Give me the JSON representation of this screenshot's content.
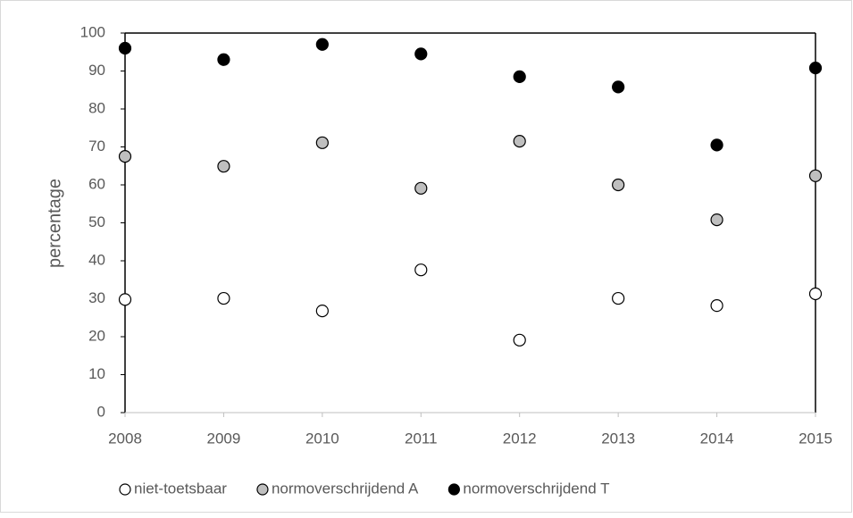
{
  "chart_data": {
    "type": "scatter",
    "y_label": "percentage",
    "x": [
      2008,
      2009,
      2010,
      2011,
      2012,
      2013,
      2014,
      2015
    ],
    "xlim": [
      2008,
      2015
    ],
    "xticks": [
      2008,
      2009,
      2010,
      2011,
      2012,
      2013,
      2014,
      2015
    ],
    "ylim": [
      0,
      100
    ],
    "yticks": [
      0,
      10,
      20,
      30,
      40,
      50,
      60,
      70,
      80,
      90,
      100
    ],
    "grid": false,
    "legend": "bottom",
    "series": [
      {
        "name": "niet-toetsbaar",
        "color": "#ffffff",
        "values": [
          29.8,
          30.1,
          26.8,
          37.6,
          19.1,
          30.1,
          28.2,
          31.3
        ]
      },
      {
        "name": "normoverschrijdend A",
        "color": "#bfbfbf",
        "values": [
          67.5,
          64.9,
          71.1,
          59.1,
          71.5,
          60.0,
          50.8,
          62.4
        ]
      },
      {
        "name": "normoverschrijdend T",
        "color": "#000000",
        "values": [
          96.0,
          93.0,
          97.0,
          94.5,
          88.5,
          85.8,
          70.5,
          90.8
        ]
      }
    ]
  }
}
